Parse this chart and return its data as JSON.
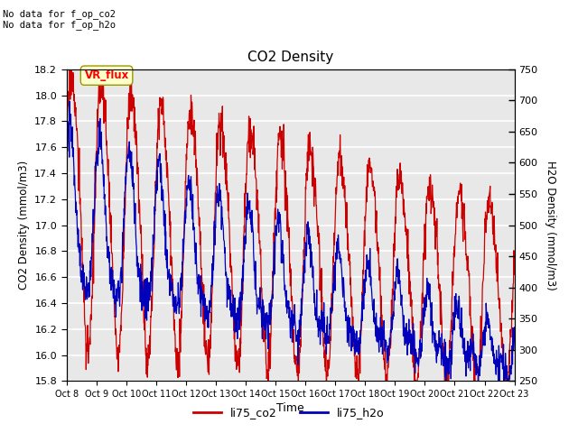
{
  "title": "CO2 Density",
  "xlabel": "Time",
  "ylabel_left": "CO2 Density (mmol/m3)",
  "ylabel_right": "H2O Density (mmol/m3)",
  "annotation_text": "No data for f_op_co2\nNo data for f_op_h2o",
  "legend_label1": "li75_co2",
  "legend_label2": "li75_h2o",
  "legend_box_label": "VR_flux",
  "ylim_left": [
    15.8,
    18.2
  ],
  "ylim_right": [
    250,
    750
  ],
  "x_tick_labels": [
    "Oct 8",
    "Oct 9",
    "Oct 10",
    "Oct 11",
    "Oct 12",
    "Oct 13",
    "Oct 14",
    "Oct 15",
    "Oct 16",
    "Oct 17",
    "Oct 18",
    "Oct 19",
    "Oct 20",
    "Oct 21",
    "Oct 22",
    "Oct 23"
  ],
  "bg_color": "#e8e8e8",
  "grid_color": "#ffffff",
  "co2_color": "#cc0000",
  "h2o_color": "#0000bb",
  "legend_box_bg": "#ffffcc",
  "legend_box_edge": "#999900"
}
